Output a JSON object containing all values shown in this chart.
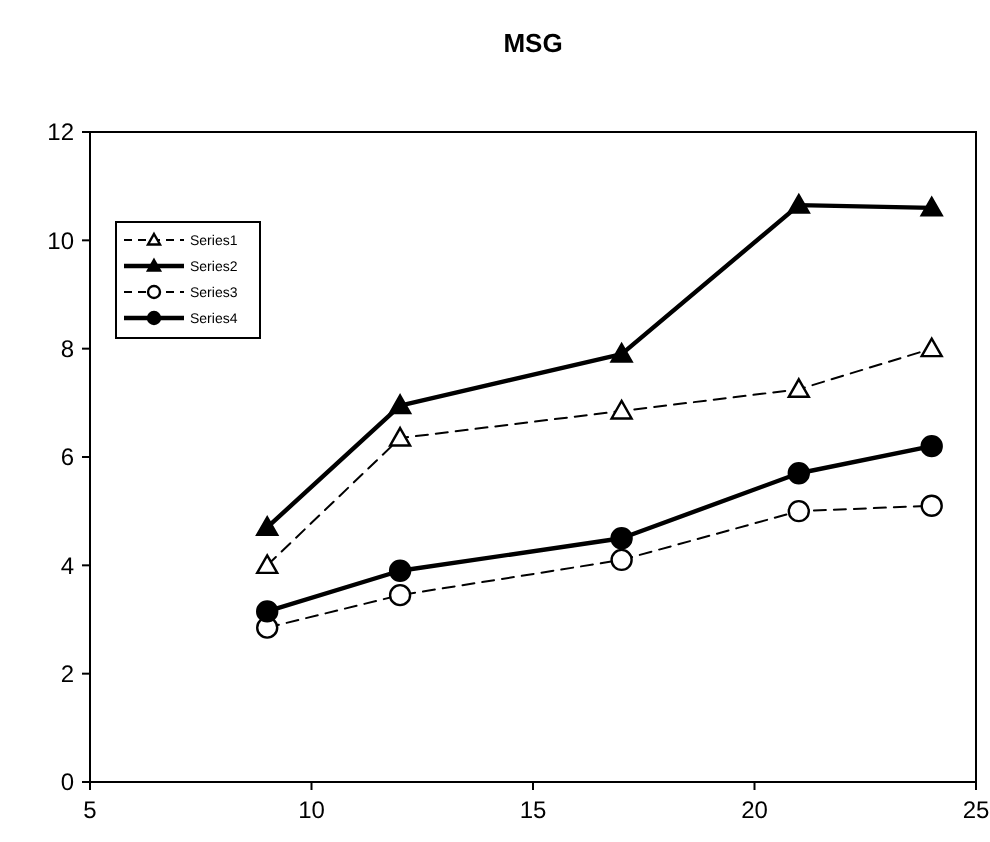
{
  "chart_data": {
    "type": "line",
    "title": "MSG",
    "x": [
      9,
      12,
      17,
      21,
      24
    ],
    "series": [
      {
        "name": "Series1",
        "color": "#000000",
        "marker": "triangle",
        "line_style": "dashed",
        "values": [
          4.0,
          6.35,
          6.85,
          7.25,
          8.0
        ]
      },
      {
        "name": "Series2",
        "color": "#000000",
        "marker": "triangle",
        "line_style": "solid",
        "values": [
          4.7,
          6.95,
          7.9,
          10.65,
          10.6
        ]
      },
      {
        "name": "Series3",
        "color": "#000000",
        "marker": "circle",
        "line_style": "dashed",
        "values": [
          2.85,
          3.45,
          4.1,
          5.0,
          5.1
        ]
      },
      {
        "name": "Series4",
        "color": "#000000",
        "marker": "circle",
        "line_style": "solid",
        "values": [
          3.15,
          3.9,
          4.5,
          5.7,
          6.2
        ]
      }
    ],
    "xlim": [
      5,
      25
    ],
    "xticks": [
      5,
      10,
      15,
      20,
      25
    ],
    "ylim": [
      0,
      12
    ],
    "yticks": [
      0,
      2,
      4,
      6,
      8,
      10,
      12
    ],
    "grid": false,
    "legend": "top left"
  }
}
